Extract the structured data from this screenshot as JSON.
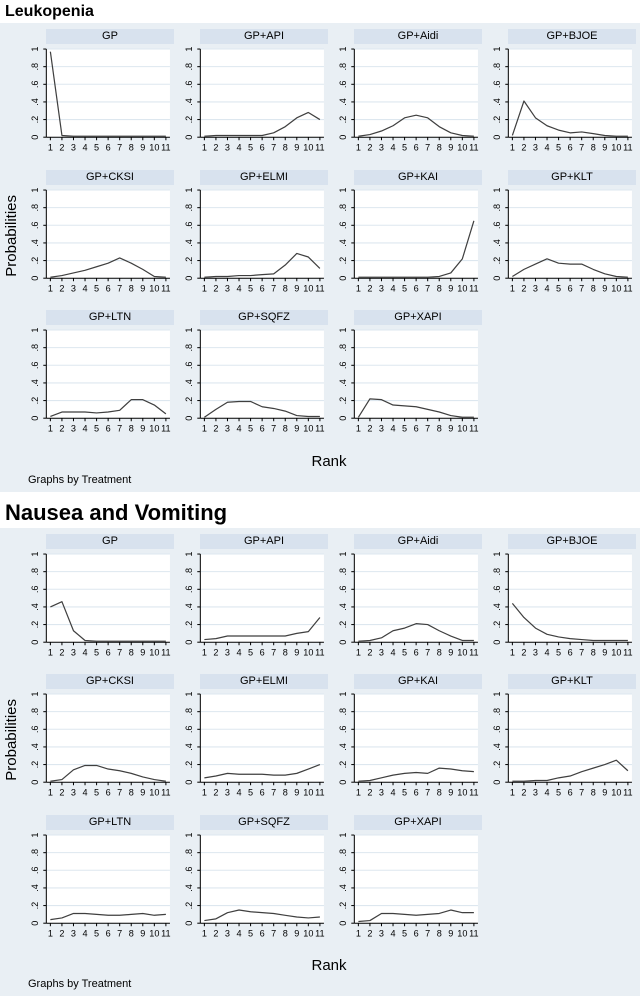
{
  "colors": {
    "figure_bg": "#e9eff4",
    "title_strip_bg": "#d8e2ee",
    "plot_bg": "#ffffff",
    "gridline": "#dde7ef",
    "axis": "#000000",
    "line": "#3f3f3f",
    "text": "#000000"
  },
  "chart_data": [
    {
      "type": "line",
      "title": "Leukopenia",
      "xlabel": "Rank",
      "ylabel": "Probabilities",
      "note": "Graphs by Treatment",
      "x": [
        1,
        2,
        3,
        4,
        5,
        6,
        7,
        8,
        9,
        10,
        11
      ],
      "xticks": [
        "1",
        "2",
        "3",
        "4",
        "5",
        "6",
        "7",
        "8",
        "9",
        "10",
        "11"
      ],
      "ylim": [
        0,
        1
      ],
      "yticks": [
        "0",
        ".2",
        ".4",
        ".6",
        ".8",
        "1"
      ],
      "grid": true,
      "legend": "none",
      "panels": [
        {
          "title": "GP",
          "values": [
            0.97,
            0.02,
            0.01,
            0.01,
            0.01,
            0.01,
            0.01,
            0.01,
            0.01,
            0.01,
            0.01
          ]
        },
        {
          "title": "GP+API",
          "values": [
            0.01,
            0.02,
            0.02,
            0.02,
            0.02,
            0.02,
            0.05,
            0.12,
            0.22,
            0.28,
            0.2
          ]
        },
        {
          "title": "GP+Aidi",
          "values": [
            0.01,
            0.03,
            0.07,
            0.13,
            0.22,
            0.25,
            0.22,
            0.12,
            0.05,
            0.02,
            0.01
          ]
        },
        {
          "title": "GP+BJOE",
          "values": [
            0.02,
            0.41,
            0.22,
            0.13,
            0.08,
            0.05,
            0.06,
            0.04,
            0.02,
            0.01,
            0.01
          ]
        },
        {
          "title": "GP+CKSI",
          "values": [
            0.01,
            0.03,
            0.06,
            0.09,
            0.13,
            0.17,
            0.23,
            0.17,
            0.1,
            0.02,
            0.01
          ]
        },
        {
          "title": "GP+ELMI",
          "values": [
            0.01,
            0.02,
            0.02,
            0.03,
            0.03,
            0.04,
            0.05,
            0.15,
            0.28,
            0.24,
            0.11
          ]
        },
        {
          "title": "GP+KAI",
          "values": [
            0.01,
            0.01,
            0.01,
            0.01,
            0.01,
            0.01,
            0.01,
            0.02,
            0.06,
            0.22,
            0.65
          ]
        },
        {
          "title": "GP+KLT",
          "values": [
            0.02,
            0.1,
            0.16,
            0.22,
            0.17,
            0.16,
            0.16,
            0.1,
            0.05,
            0.02,
            0.01
          ]
        },
        {
          "title": "GP+LTN",
          "values": [
            0.02,
            0.07,
            0.07,
            0.07,
            0.06,
            0.07,
            0.09,
            0.21,
            0.21,
            0.15,
            0.05
          ]
        },
        {
          "title": "GP+SQFZ",
          "values": [
            0.01,
            0.1,
            0.18,
            0.19,
            0.19,
            0.13,
            0.11,
            0.08,
            0.03,
            0.02,
            0.02
          ]
        },
        {
          "title": "GP+XAPI",
          "values": [
            0.01,
            0.22,
            0.21,
            0.15,
            0.14,
            0.13,
            0.1,
            0.07,
            0.03,
            0.01,
            0.01
          ]
        }
      ]
    },
    {
      "type": "line",
      "title": "Nausea and Vomiting",
      "xlabel": "Rank",
      "ylabel": "Probabilities",
      "note": "Graphs by Treatment",
      "x": [
        1,
        2,
        3,
        4,
        5,
        6,
        7,
        8,
        9,
        10,
        11
      ],
      "xticks": [
        "1",
        "2",
        "3",
        "4",
        "5",
        "6",
        "7",
        "8",
        "9",
        "10",
        "11"
      ],
      "ylim": [
        0,
        1
      ],
      "yticks": [
        "0",
        ".2",
        ".4",
        ".6",
        ".8",
        "1"
      ],
      "grid": true,
      "legend": "none",
      "panels": [
        {
          "title": "GP",
          "values": [
            0.4,
            0.46,
            0.13,
            0.02,
            0.01,
            0.01,
            0.01,
            0.01,
            0.01,
            0.01,
            0.01
          ]
        },
        {
          "title": "GP+API",
          "values": [
            0.03,
            0.04,
            0.07,
            0.07,
            0.07,
            0.07,
            0.07,
            0.07,
            0.1,
            0.12,
            0.28
          ]
        },
        {
          "title": "GP+Aidi",
          "values": [
            0.01,
            0.02,
            0.05,
            0.13,
            0.16,
            0.21,
            0.2,
            0.13,
            0.07,
            0.02,
            0.02
          ]
        },
        {
          "title": "GP+BJOE",
          "values": [
            0.44,
            0.28,
            0.16,
            0.09,
            0.06,
            0.04,
            0.03,
            0.02,
            0.02,
            0.02,
            0.02
          ]
        },
        {
          "title": "GP+CKSI",
          "values": [
            0.01,
            0.03,
            0.14,
            0.19,
            0.19,
            0.15,
            0.13,
            0.1,
            0.06,
            0.03,
            0.01
          ]
        },
        {
          "title": "GP+ELMI",
          "values": [
            0.05,
            0.07,
            0.1,
            0.09,
            0.09,
            0.09,
            0.08,
            0.08,
            0.1,
            0.15,
            0.2
          ]
        },
        {
          "title": "GP+KAI",
          "values": [
            0.01,
            0.02,
            0.05,
            0.08,
            0.1,
            0.11,
            0.1,
            0.16,
            0.15,
            0.13,
            0.12
          ]
        },
        {
          "title": "GP+KLT",
          "values": [
            0.01,
            0.01,
            0.02,
            0.02,
            0.05,
            0.07,
            0.12,
            0.16,
            0.2,
            0.25,
            0.13
          ]
        },
        {
          "title": "GP+LTN",
          "values": [
            0.04,
            0.06,
            0.11,
            0.11,
            0.1,
            0.09,
            0.09,
            0.1,
            0.11,
            0.09,
            0.1
          ]
        },
        {
          "title": "GP+SQFZ",
          "values": [
            0.03,
            0.05,
            0.12,
            0.15,
            0.13,
            0.12,
            0.11,
            0.09,
            0.07,
            0.06,
            0.07
          ]
        },
        {
          "title": "GP+XAPI",
          "values": [
            0.02,
            0.03,
            0.11,
            0.11,
            0.1,
            0.09,
            0.1,
            0.11,
            0.15,
            0.12,
            0.12
          ]
        }
      ]
    }
  ]
}
